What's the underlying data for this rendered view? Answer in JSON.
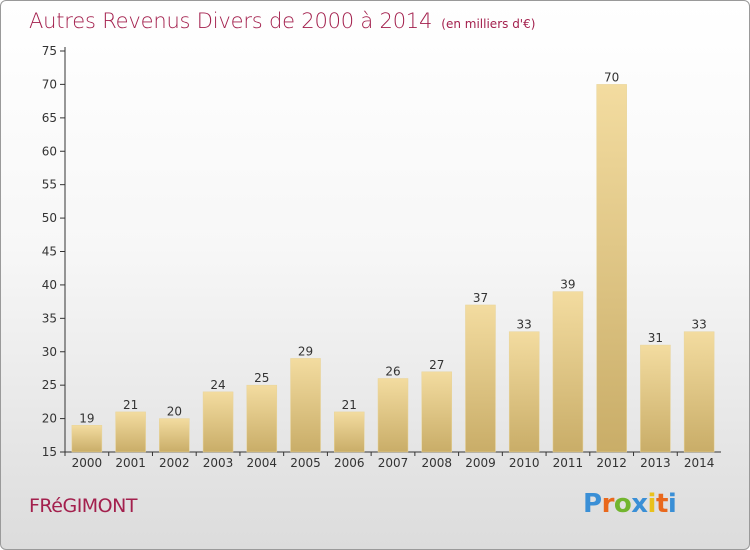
{
  "header": {
    "title": "Autres Revenus Divers de 2000 à 2014",
    "subtitle": "(en milliers d'€)"
  },
  "footer": {
    "commune": "FRéGIMONT",
    "brand_letters": [
      "P",
      "r",
      "o",
      "x",
      "i",
      "t",
      "i"
    ],
    "brand_colors": [
      "#3a8fd6",
      "#e9681c",
      "#72b52e",
      "#3a8fd6",
      "#e9c11c",
      "#e9681c",
      "#3a8fd6"
    ]
  },
  "chart_data": {
    "type": "bar",
    "categories": [
      "2000",
      "2001",
      "2002",
      "2003",
      "2004",
      "2005",
      "2006",
      "2007",
      "2008",
      "2009",
      "2010",
      "2011",
      "2012",
      "2013",
      "2014"
    ],
    "values": [
      19,
      21,
      20,
      24,
      25,
      29,
      21,
      26,
      27,
      37,
      33,
      39,
      70,
      31,
      33
    ],
    "title": "Autres Revenus Divers de 2000 à 2014",
    "subtitle": "(en milliers d'€)",
    "ylim": [
      15,
      75
    ],
    "yticks": [
      15,
      20,
      25,
      30,
      35,
      40,
      45,
      50,
      55,
      60,
      65,
      70,
      75
    ],
    "grid": false,
    "bar_color_light": "#f3dca0",
    "bar_color_dark": "#c9ad68"
  }
}
